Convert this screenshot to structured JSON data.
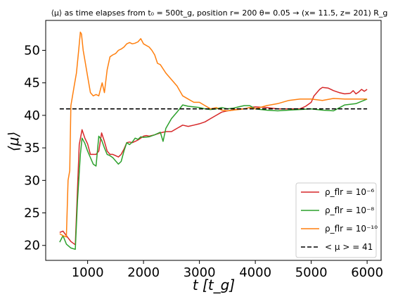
{
  "chart_data": {
    "type": "line",
    "title": "⟨μ⟩ as time elapses from t₀ = 500t_g, position r= 200   θ= 0.05 → (x= 11.5, z= 201) R_g",
    "xlabel": "t [t_g]",
    "ylabel": "⟨μ⟩",
    "xlim": [
      250,
      6250
    ],
    "ylim": [
      17.7,
      54.6
    ],
    "xticks": [
      1000,
      2000,
      3000,
      4000,
      5000,
      6000
    ],
    "yticks": [
      20,
      25,
      30,
      35,
      40,
      45,
      50
    ],
    "grid": false,
    "legend_position": "lower-right",
    "series": [
      {
        "name": "ρ_flr = 10⁻⁶",
        "color": "#d62728",
        "x": [
          500,
          560,
          620,
          700,
          780,
          850,
          900,
          950,
          1000,
          1050,
          1100,
          1150,
          1200,
          1250,
          1300,
          1350,
          1400,
          1450,
          1500,
          1550,
          1600,
          1650,
          1700,
          1750,
          1800,
          1850,
          1900,
          1950,
          2000,
          2050,
          2100,
          2200,
          2300,
          2400,
          2500,
          2600,
          2700,
          2800,
          2900,
          3000,
          3100,
          3200,
          3300,
          3400,
          3500,
          3600,
          3700,
          3800,
          3900,
          4000,
          4200,
          4400,
          4600,
          4800,
          4900,
          5000,
          5050,
          5100,
          5150,
          5200,
          5300,
          5400,
          5500,
          5600,
          5700,
          5750,
          5800,
          5850,
          5900,
          5950,
          6000
        ],
        "y": [
          22.0,
          22.2,
          21.5,
          20.6,
          20.1,
          35.5,
          37.8,
          36.5,
          35.6,
          34.0,
          34.0,
          34.0,
          34.5,
          37.3,
          36.0,
          34.5,
          34.0,
          34.0,
          33.8,
          33.6,
          34.0,
          34.8,
          35.8,
          35.9,
          35.8,
          36.0,
          36.2,
          36.5,
          36.8,
          36.9,
          36.8,
          37.0,
          37.3,
          37.5,
          37.5,
          38.0,
          38.5,
          38.3,
          38.5,
          38.7,
          39.0,
          39.5,
          40.0,
          40.5,
          40.7,
          40.8,
          41.0,
          41.0,
          41.2,
          41.3,
          41.2,
          41.0,
          41.0,
          41.0,
          41.4,
          42.0,
          43.0,
          43.5,
          44.0,
          44.3,
          44.2,
          43.8,
          43.5,
          43.3,
          43.4,
          43.8,
          43.3,
          43.6,
          44.0,
          43.7,
          44.0
        ]
      },
      {
        "name": "ρ_flr = 10⁻⁸",
        "color": "#2ca02c",
        "x": [
          500,
          560,
          620,
          700,
          780,
          820,
          870,
          900,
          950,
          1000,
          1050,
          1100,
          1150,
          1200,
          1250,
          1300,
          1350,
          1400,
          1450,
          1500,
          1550,
          1600,
          1650,
          1700,
          1750,
          1800,
          1850,
          1900,
          1950,
          2000,
          2100,
          2200,
          2300,
          2350,
          2400,
          2500,
          2600,
          2700,
          2800,
          2900,
          3000,
          3100,
          3200,
          3300,
          3400,
          3500,
          3600,
          3700,
          3800,
          3900,
          4000,
          4200,
          4400,
          4600,
          4800,
          5000,
          5200,
          5400,
          5600,
          5800,
          6000
        ],
        "y": [
          20.5,
          21.5,
          20.2,
          19.6,
          19.4,
          27.0,
          34.0,
          36.5,
          35.7,
          34.5,
          33.5,
          32.5,
          32.2,
          36.8,
          36.2,
          35.0,
          34.0,
          33.8,
          33.5,
          33.0,
          32.5,
          32.9,
          34.5,
          35.8,
          35.5,
          35.9,
          36.5,
          36.3,
          36.7,
          36.6,
          36.7,
          37.0,
          37.4,
          36.0,
          38.0,
          39.5,
          40.5,
          41.6,
          41.4,
          41.3,
          41.2,
          41.0,
          40.9,
          41.0,
          41.2,
          41.0,
          41.1,
          41.3,
          41.5,
          41.5,
          41.0,
          40.8,
          40.7,
          40.8,
          40.9,
          41.0,
          40.8,
          40.7,
          41.6,
          41.8,
          42.5
        ]
      },
      {
        "name": "ρ_flr = 10⁻¹⁰",
        "color": "#ff7f0e",
        "x": [
          500,
          560,
          620,
          650,
          680,
          700,
          720,
          760,
          800,
          840,
          870,
          890,
          920,
          950,
          1000,
          1050,
          1100,
          1150,
          1200,
          1230,
          1260,
          1300,
          1350,
          1400,
          1450,
          1500,
          1550,
          1600,
          1650,
          1700,
          1750,
          1800,
          1850,
          1900,
          1950,
          2000,
          2100,
          2150,
          2200,
          2250,
          2300,
          2400,
          2500,
          2600,
          2700,
          2800,
          2900,
          3000,
          3100,
          3200,
          3300,
          3400,
          3500,
          3600,
          3700,
          3800,
          3900,
          4000,
          4200,
          4400,
          4600,
          4800,
          5000,
          5200,
          5400,
          5600,
          5800,
          6000
        ],
        "y": [
          21.8,
          21.5,
          21.3,
          30.0,
          31.5,
          41.5,
          42.5,
          44.5,
          46.5,
          50.0,
          52.8,
          52.5,
          50.0,
          48.5,
          46.0,
          43.5,
          43.0,
          43.2,
          43.0,
          44.0,
          45.0,
          43.5,
          47.0,
          49.0,
          49.3,
          49.5,
          50.0,
          50.2,
          50.5,
          51.0,
          51.2,
          51.0,
          51.1,
          51.3,
          51.8,
          51.0,
          50.5,
          50.0,
          49.3,
          48.0,
          47.8,
          46.5,
          45.5,
          44.5,
          43.0,
          42.5,
          42.0,
          42.0,
          41.5,
          41.0,
          41.2,
          40.8,
          40.7,
          40.8,
          40.9,
          41.0,
          41.2,
          41.0,
          41.5,
          41.8,
          42.3,
          42.5,
          42.5,
          42.3,
          42.6,
          42.5,
          42.5,
          42.5
        ]
      },
      {
        "name": "< μ > = 41",
        "color": "#000000",
        "dashed": true,
        "x": [
          500,
          6000
        ],
        "y": [
          41,
          41
        ]
      }
    ]
  }
}
